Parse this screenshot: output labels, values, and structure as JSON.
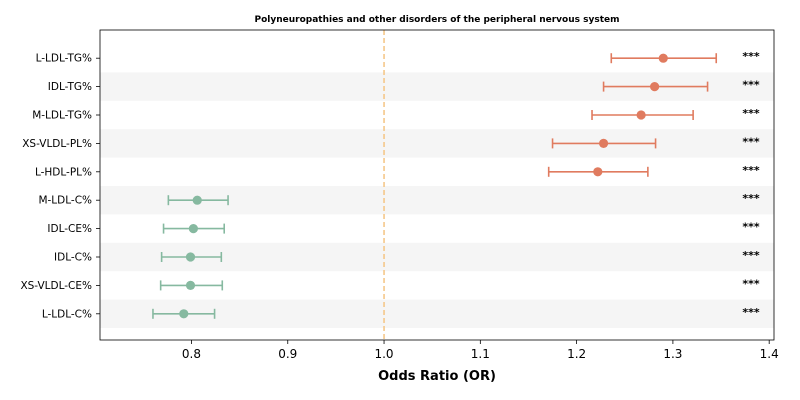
{
  "chart_data": {
    "type": "forest",
    "title": "Polyneuropathies and other disorders of the peripheral nervous system",
    "xlabel": "Odds Ratio (OR)",
    "ylabel": "",
    "xlim": [
      0.705,
      1.405
    ],
    "xticks": [
      "0.8",
      "0.9",
      "1.0",
      "1.1",
      "1.2",
      "1.3",
      "1.4"
    ],
    "reference_line": 1.0,
    "colors": {
      "risk": "#e07b5f",
      "protective": "#86b9a0",
      "reference": "#f5c88a",
      "band": "#f5f5f5"
    },
    "rows": [
      {
        "label": "L-LDL-TG%",
        "or": 1.29,
        "lo": 1.236,
        "hi": 1.345,
        "sig": "***",
        "group": "risk"
      },
      {
        "label": "IDL-TG%",
        "or": 1.281,
        "lo": 1.228,
        "hi": 1.336,
        "sig": "***",
        "group": "risk"
      },
      {
        "label": "M-LDL-TG%",
        "or": 1.267,
        "lo": 1.216,
        "hi": 1.321,
        "sig": "***",
        "group": "risk"
      },
      {
        "label": "XS-VLDL-PL%",
        "or": 1.228,
        "lo": 1.175,
        "hi": 1.282,
        "sig": "***",
        "group": "risk"
      },
      {
        "label": "L-HDL-PL%",
        "or": 1.222,
        "lo": 1.171,
        "hi": 1.274,
        "sig": "***",
        "group": "risk"
      },
      {
        "label": "M-LDL-C%",
        "or": 0.806,
        "lo": 0.776,
        "hi": 0.838,
        "sig": "***",
        "group": "protective"
      },
      {
        "label": "IDL-CE%",
        "or": 0.802,
        "lo": 0.771,
        "hi": 0.834,
        "sig": "***",
        "group": "protective"
      },
      {
        "label": "IDL-C%",
        "or": 0.799,
        "lo": 0.769,
        "hi": 0.831,
        "sig": "***",
        "group": "protective"
      },
      {
        "label": "XS-VLDL-CE%",
        "or": 0.799,
        "lo": 0.768,
        "hi": 0.832,
        "sig": "***",
        "group": "protective"
      },
      {
        "label": "L-LDL-C%",
        "or": 0.792,
        "lo": 0.76,
        "hi": 0.824,
        "sig": "***",
        "group": "protective"
      }
    ]
  }
}
